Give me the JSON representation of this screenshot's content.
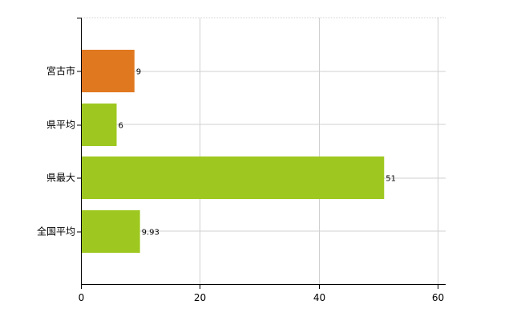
{
  "chart_data": {
    "type": "bar",
    "orientation": "horizontal",
    "categories": [
      "宮古市",
      "県平均",
      "県最大",
      "全国平均"
    ],
    "values": [
      9,
      6,
      51,
      9.93
    ],
    "value_labels": [
      "9",
      "6",
      "51",
      "9.93"
    ],
    "bar_colors": [
      "#e07820",
      "#9ec820",
      "#9ec820",
      "#9ec820"
    ],
    "xlim": [
      0,
      60
    ],
    "xticks": [
      0,
      20,
      40,
      60
    ],
    "xtick_labels": [
      "0",
      "20",
      "40",
      "60"
    ],
    "grid": true,
    "title": "",
    "xlabel": "",
    "ylabel": ""
  }
}
